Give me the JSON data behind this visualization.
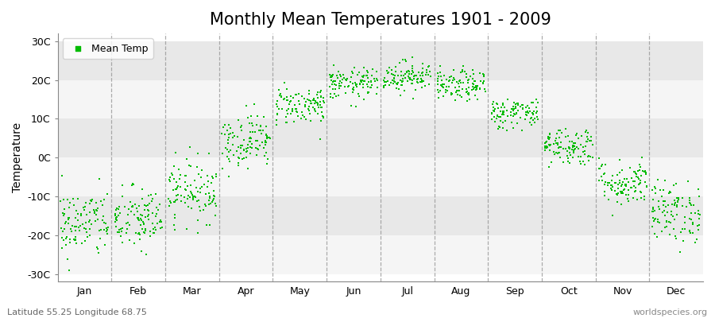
{
  "title": "Monthly Mean Temperatures 1901 - 2009",
  "ylabel": "Temperature",
  "yticks": [
    -30,
    -20,
    -10,
    0,
    10,
    20,
    30
  ],
  "ytick_labels": [
    "-30C",
    "-20C",
    "-10C",
    "0C",
    "10C",
    "20C",
    "30C"
  ],
  "ylim": [
    -32,
    32
  ],
  "months": [
    "Jan",
    "Feb",
    "Mar",
    "Apr",
    "May",
    "Jun",
    "Jul",
    "Aug",
    "Sep",
    "Oct",
    "Nov",
    "Dec"
  ],
  "mean_temps": [
    -17.0,
    -16.0,
    -8.5,
    4.5,
    13.5,
    19.0,
    21.0,
    18.5,
    11.5,
    3.0,
    -6.5,
    -14.0
  ],
  "std_temps": [
    4.5,
    4.2,
    4.0,
    3.5,
    2.5,
    2.0,
    2.0,
    2.0,
    2.0,
    2.5,
    3.0,
    4.0
  ],
  "n_years": 109,
  "dot_color": "#00bb00",
  "dot_size": 4,
  "bg_color": "#ffffff",
  "band_color_light": "#f5f5f5",
  "band_color_dark": "#e8e8e8",
  "dash_color": "#999999",
  "legend_label": "Mean Temp",
  "footer_left": "Latitude 55.25 Longitude 68.75",
  "footer_right": "worldspecies.org",
  "title_fontsize": 15,
  "axis_fontsize": 10,
  "tick_fontsize": 9,
  "footer_fontsize": 8
}
